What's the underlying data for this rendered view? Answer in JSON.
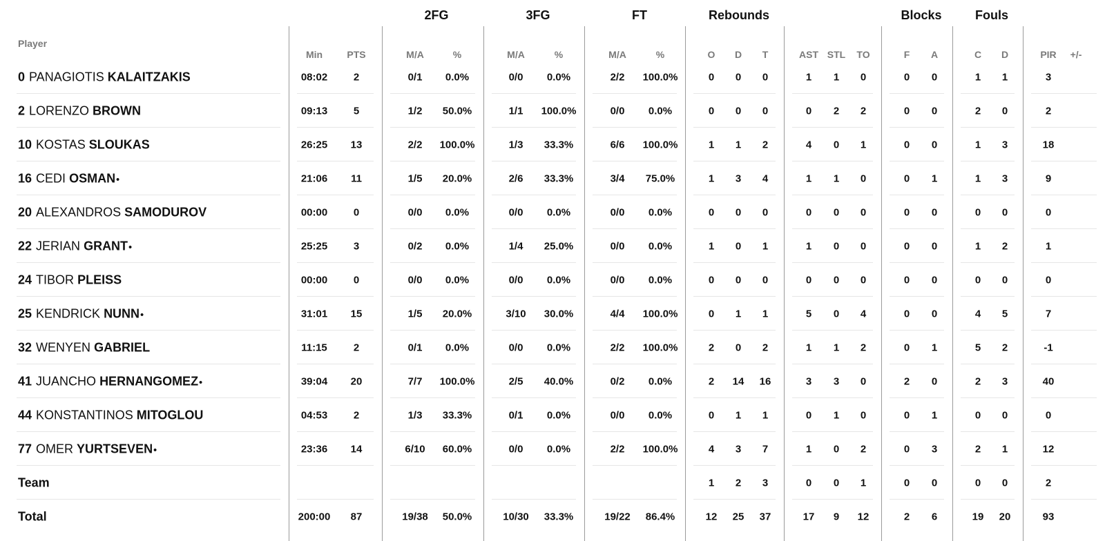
{
  "header": {
    "player_label": "Player",
    "groups": [
      "2FG",
      "3FG",
      "FT",
      "Rebounds",
      "Blocks",
      "Fouls"
    ],
    "columns": [
      "Min",
      "PTS",
      "M/A",
      "%",
      "M/A",
      "%",
      "M/A",
      "%",
      "O",
      "D",
      "T",
      "AST",
      "STL",
      "TO",
      "F",
      "A",
      "C",
      "D",
      "PIR",
      "+/-"
    ]
  },
  "rows": [
    {
      "num": "0",
      "first": "PANAGIOTIS",
      "last": "KALAITZAKIS",
      "mark": "",
      "stats": [
        "08:02",
        "2",
        "0/1",
        "0.0%",
        "0/0",
        "0.0%",
        "2/2",
        "100.0%",
        "0",
        "0",
        "0",
        "1",
        "1",
        "0",
        "0",
        "0",
        "1",
        "1",
        "3",
        ""
      ]
    },
    {
      "num": "2",
      "first": "LORENZO",
      "last": "BROWN",
      "mark": "",
      "stats": [
        "09:13",
        "5",
        "1/2",
        "50.0%",
        "1/1",
        "100.0%",
        "0/0",
        "0.0%",
        "0",
        "0",
        "0",
        "0",
        "2",
        "2",
        "0",
        "0",
        "2",
        "0",
        "2",
        ""
      ]
    },
    {
      "num": "10",
      "first": "KOSTAS",
      "last": "SLOUKAS",
      "mark": "",
      "stats": [
        "26:25",
        "13",
        "2/2",
        "100.0%",
        "1/3",
        "33.3%",
        "6/6",
        "100.0%",
        "1",
        "1",
        "2",
        "4",
        "0",
        "1",
        "0",
        "0",
        "1",
        "3",
        "18",
        ""
      ]
    },
    {
      "num": "16",
      "first": "CEDI",
      "last": "OSMAN",
      "mark": "•",
      "stats": [
        "21:06",
        "11",
        "1/5",
        "20.0%",
        "2/6",
        "33.3%",
        "3/4",
        "75.0%",
        "1",
        "3",
        "4",
        "1",
        "1",
        "0",
        "0",
        "1",
        "1",
        "3",
        "9",
        ""
      ]
    },
    {
      "num": "20",
      "first": "ALEXANDROS",
      "last": "SAMODUROV",
      "mark": "",
      "stats": [
        "00:00",
        "0",
        "0/0",
        "0.0%",
        "0/0",
        "0.0%",
        "0/0",
        "0.0%",
        "0",
        "0",
        "0",
        "0",
        "0",
        "0",
        "0",
        "0",
        "0",
        "0",
        "0",
        ""
      ]
    },
    {
      "num": "22",
      "first": "JERIAN",
      "last": "GRANT",
      "mark": "•",
      "stats": [
        "25:25",
        "3",
        "0/2",
        "0.0%",
        "1/4",
        "25.0%",
        "0/0",
        "0.0%",
        "1",
        "0",
        "1",
        "1",
        "0",
        "0",
        "0",
        "0",
        "1",
        "2",
        "1",
        ""
      ]
    },
    {
      "num": "24",
      "first": "TIBOR",
      "last": "PLEISS",
      "mark": "",
      "stats": [
        "00:00",
        "0",
        "0/0",
        "0.0%",
        "0/0",
        "0.0%",
        "0/0",
        "0.0%",
        "0",
        "0",
        "0",
        "0",
        "0",
        "0",
        "0",
        "0",
        "0",
        "0",
        "0",
        ""
      ]
    },
    {
      "num": "25",
      "first": "KENDRICK",
      "last": "NUNN",
      "mark": "•",
      "stats": [
        "31:01",
        "15",
        "1/5",
        "20.0%",
        "3/10",
        "30.0%",
        "4/4",
        "100.0%",
        "0",
        "1",
        "1",
        "5",
        "0",
        "4",
        "0",
        "0",
        "4",
        "5",
        "7",
        ""
      ]
    },
    {
      "num": "32",
      "first": "WENYEN",
      "last": "GABRIEL",
      "mark": "",
      "stats": [
        "11:15",
        "2",
        "0/1",
        "0.0%",
        "0/0",
        "0.0%",
        "2/2",
        "100.0%",
        "2",
        "0",
        "2",
        "1",
        "1",
        "2",
        "0",
        "1",
        "5",
        "2",
        "-1",
        ""
      ]
    },
    {
      "num": "41",
      "first": "JUANCHO",
      "last": "HERNANGOMEZ",
      "mark": "•",
      "stats": [
        "39:04",
        "20",
        "7/7",
        "100.0%",
        "2/5",
        "40.0%",
        "0/2",
        "0.0%",
        "2",
        "14",
        "16",
        "3",
        "3",
        "0",
        "2",
        "0",
        "2",
        "3",
        "40",
        ""
      ]
    },
    {
      "num": "44",
      "first": "KONSTANTINOS",
      "last": "MITOGLOU",
      "mark": "",
      "stats": [
        "04:53",
        "2",
        "1/3",
        "33.3%",
        "0/1",
        "0.0%",
        "0/0",
        "0.0%",
        "0",
        "1",
        "1",
        "0",
        "1",
        "0",
        "0",
        "1",
        "0",
        "0",
        "0",
        ""
      ]
    },
    {
      "num": "77",
      "first": "OMER",
      "last": "YURTSEVEN",
      "mark": "•",
      "stats": [
        "23:36",
        "14",
        "6/10",
        "60.0%",
        "0/0",
        "0.0%",
        "2/2",
        "100.0%",
        "4",
        "3",
        "7",
        "1",
        "0",
        "2",
        "0",
        "3",
        "2",
        "1",
        "12",
        ""
      ]
    },
    {
      "label": "Team",
      "stats": [
        "",
        "",
        "",
        "",
        "",
        "",
        "",
        "",
        "1",
        "2",
        "3",
        "0",
        "0",
        "1",
        "0",
        "0",
        "0",
        "0",
        "2",
        ""
      ]
    },
    {
      "label": "Total",
      "stats": [
        "200:00",
        "87",
        "19/38",
        "50.0%",
        "10/30",
        "33.3%",
        "19/22",
        "86.4%",
        "12",
        "25",
        "37",
        "17",
        "9",
        "12",
        "2",
        "6",
        "19",
        "20",
        "93",
        ""
      ]
    }
  ]
}
